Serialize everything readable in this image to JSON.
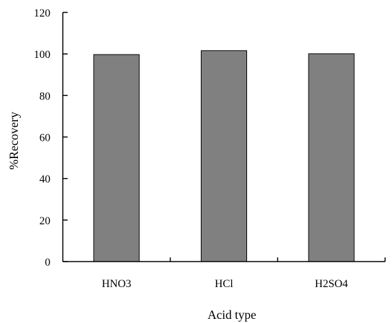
{
  "chart_data": {
    "type": "bar",
    "title": "",
    "xlabel": "Acid type",
    "ylabel": "%Recovery",
    "categories": [
      "HNO3",
      "HCl",
      "H2SO4"
    ],
    "values": [
      99.7,
      101.6,
      100.1
    ],
    "ylim": [
      0,
      120
    ],
    "yticks": [
      0,
      20,
      40,
      60,
      80,
      100,
      120
    ],
    "grid": false,
    "legend": "none",
    "bar_color": "#808080",
    "bar_edge_color": "#000000"
  }
}
